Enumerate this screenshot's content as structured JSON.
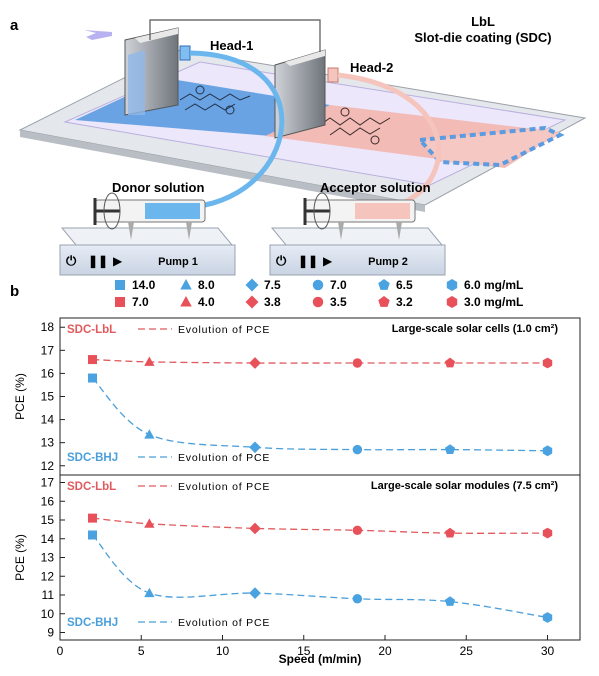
{
  "panel_a": {
    "letter": "a",
    "title_line1": "LbL",
    "title_line2": "Slot-die coating (SDC)",
    "head1": "Head-1",
    "head2": "Head-2",
    "donor": "Donor solution",
    "acceptor": "Acceptor solution",
    "pump1": "Pump 1",
    "pump2": "Pump 2"
  },
  "panel_b": {
    "letter": "b"
  },
  "legend": {
    "row1": [
      "14.0",
      "8.0",
      "7.5",
      "7.0",
      "6.5",
      "6.0 mg/mL"
    ],
    "row2": [
      "7.0",
      "4.0",
      "3.8",
      "3.5",
      "3.2",
      "3.0 mg/mL"
    ],
    "shapes": [
      "square",
      "triangle",
      "diamond",
      "circle",
      "pentagon",
      "hexagon"
    ]
  },
  "colors": {
    "lbl": "#e05a5e",
    "bhj": "#4a9fdb",
    "lbl_fill": "#e8515a",
    "bhj_fill": "#4aa3e0"
  },
  "chart_data": [
    {
      "type": "line",
      "title": "Large-scale solar cells (1.0 cm²)",
      "ylabel": "PCE (%)",
      "ylim": [
        11.6,
        18.4
      ],
      "yticks": [
        12,
        13,
        14,
        15,
        16,
        17,
        18
      ],
      "x": [
        2,
        5.5,
        12,
        18.3,
        24,
        30
      ],
      "series": [
        {
          "name": "SDC-LbL",
          "note": "Evolution of PCE",
          "values": [
            16.6,
            16.5,
            16.45,
            16.45,
            16.45,
            16.45
          ]
        },
        {
          "name": "SDC-BHJ",
          "note": "Evolution of PCE",
          "values": [
            15.8,
            13.35,
            12.8,
            12.7,
            12.7,
            12.65
          ]
        }
      ]
    },
    {
      "type": "line",
      "title": "Large-scale solar modules (7.5 cm²)",
      "ylabel": "PCE (%)",
      "xlabel": "Speed (m/min)",
      "ylim": [
        8.6,
        17.4
      ],
      "yticks": [
        9,
        10,
        11,
        12,
        13,
        14,
        15,
        16,
        17
      ],
      "xlim": [
        0,
        32
      ],
      "xticks": [
        0,
        5,
        10,
        15,
        20,
        25,
        30
      ],
      "x": [
        2,
        5.5,
        12,
        18.3,
        24,
        30
      ],
      "series": [
        {
          "name": "SDC-LbL",
          "note": "Evolution of PCE",
          "values": [
            15.1,
            14.8,
            14.55,
            14.45,
            14.3,
            14.3
          ]
        },
        {
          "name": "SDC-BHJ",
          "note": "Evolution of PCE",
          "values": [
            14.2,
            11.1,
            11.1,
            10.8,
            10.65,
            9.8
          ]
        }
      ]
    }
  ]
}
